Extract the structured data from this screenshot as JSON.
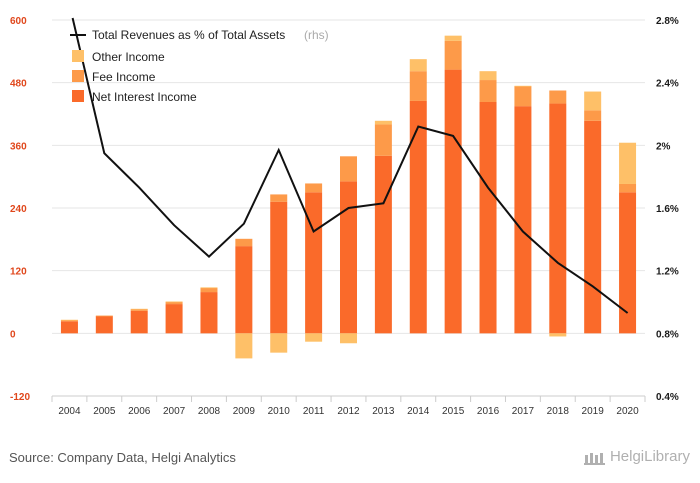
{
  "chart_data": {
    "type": "bar",
    "categories": [
      "2004",
      "2005",
      "2006",
      "2007",
      "2008",
      "2009",
      "2010",
      "2011",
      "2012",
      "2013",
      "2014",
      "2015",
      "2016",
      "2017",
      "2018",
      "2019",
      "2020"
    ],
    "series": [
      {
        "name": "Net Interest Income",
        "values": [
          23,
          33,
          43,
          56,
          79,
          167,
          252,
          270,
          291,
          340,
          445,
          505,
          443,
          435,
          440,
          407,
          270
        ],
        "color": "#fa6a2a"
      },
      {
        "name": "Fee Income",
        "values": [
          2,
          1,
          3,
          4,
          8,
          14,
          14,
          17,
          48,
          60,
          57,
          55,
          42,
          38,
          25,
          20,
          16
        ],
        "color": "#fd9a49"
      },
      {
        "name": "Other Income",
        "values": [
          1,
          0,
          1,
          1,
          1,
          -48,
          -37,
          -16,
          -19,
          7,
          23,
          10,
          17,
          1,
          -6,
          36,
          79
        ],
        "color": "#fec068"
      }
    ],
    "line": {
      "name": "Total Revenues as % of Total Assets",
      "note": "(rhs)",
      "values": [
        2.9,
        1.95,
        1.73,
        1.49,
        1.29,
        1.5,
        1.97,
        1.45,
        1.6,
        1.63,
        2.12,
        2.06,
        1.73,
        1.45,
        1.25,
        1.1,
        0.93
      ],
      "color": "#111111",
      "unit": "%"
    },
    "y_left": {
      "ticks": [
        600,
        480,
        360,
        240,
        120,
        0,
        -120
      ],
      "ylim": [
        -120,
        600
      ]
    },
    "y_right": {
      "ticks": [
        "2.8%",
        "2.4%",
        "2%",
        "1.6%",
        "1.2%",
        "0.8%",
        "0.4%"
      ],
      "ylim": [
        0.4,
        2.8
      ]
    },
    "grid": true,
    "legend_position": "top-left"
  },
  "source_text": "Source: Company Data, Helgi Analytics",
  "brand_text": "HelgiLibrary"
}
